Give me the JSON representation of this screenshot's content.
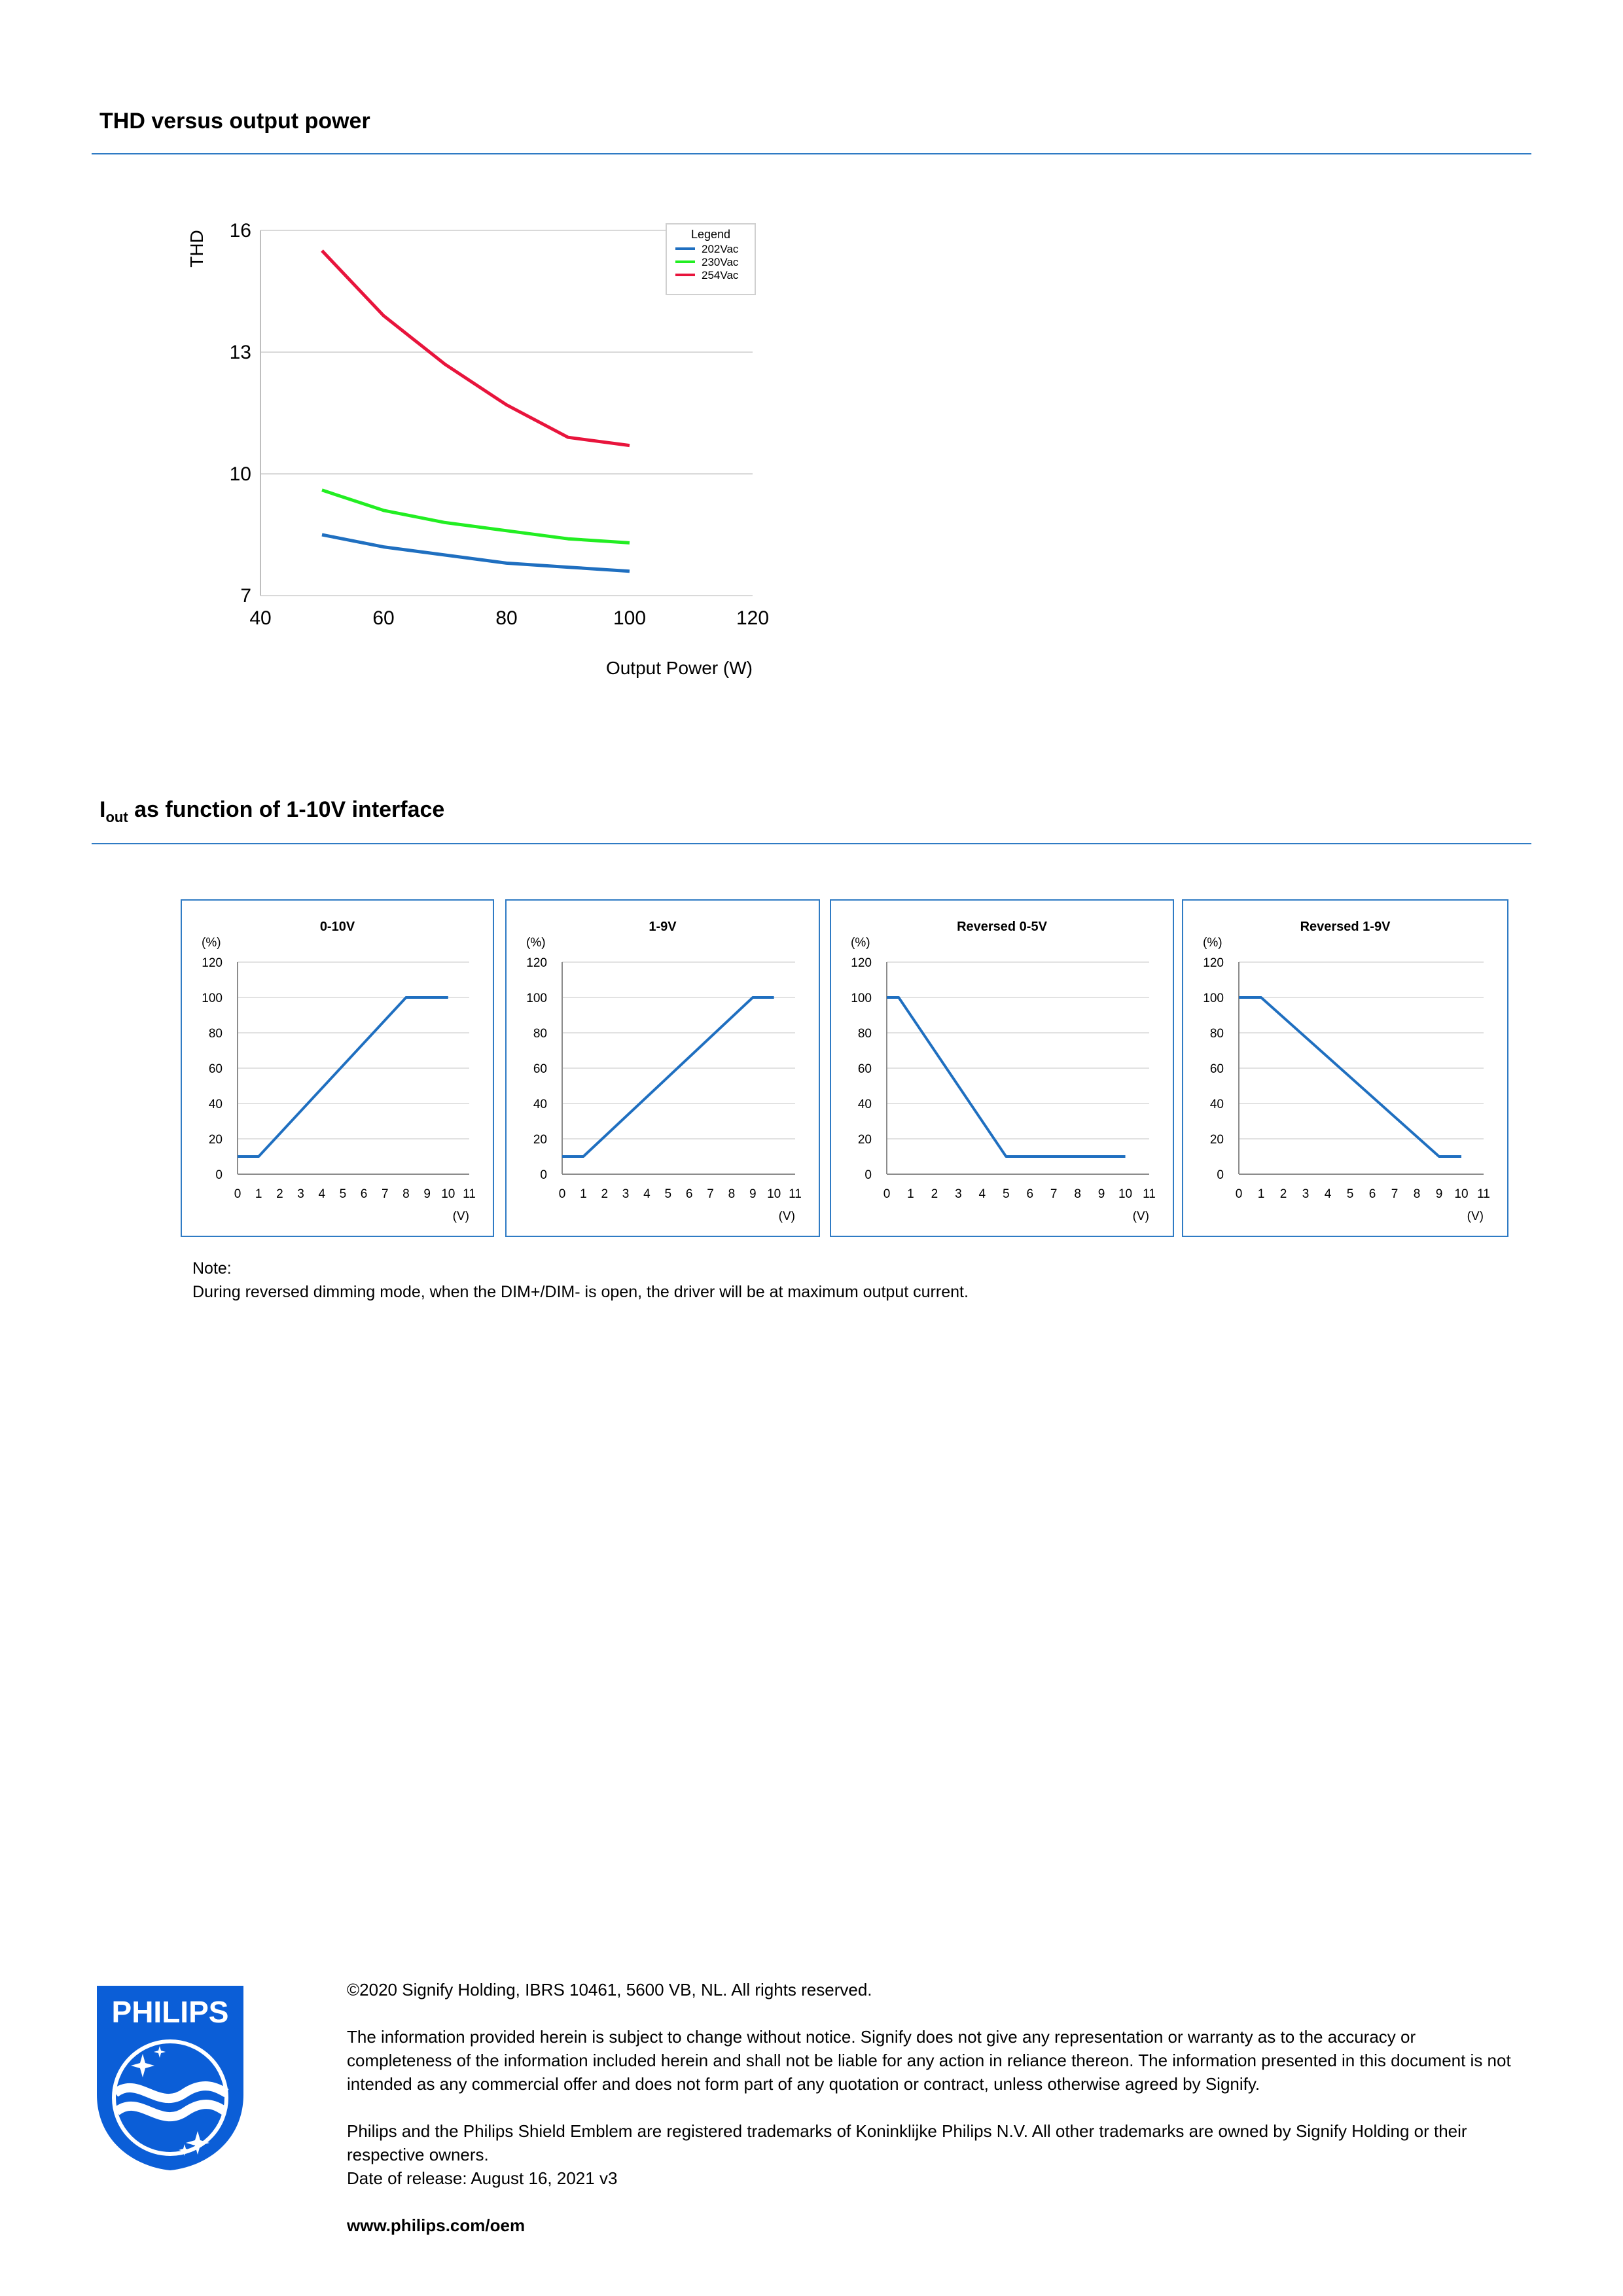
{
  "sections": {
    "thd_title": "THD versus output power",
    "iout_title_main": "I",
    "iout_title_sub": "out",
    "iout_title_rest": " as function of 1-10V interface"
  },
  "chart_data": [
    {
      "type": "line",
      "title": "",
      "xlabel": "Output Power (W)",
      "ylabel": "THD",
      "xlim": [
        40,
        120
      ],
      "ylim": [
        7,
        16
      ],
      "xticks": [
        40,
        60,
        80,
        100,
        120
      ],
      "yticks": [
        7,
        10,
        13,
        16
      ],
      "grid": "horizontal",
      "legend": {
        "title": "Legend",
        "position": "top-right"
      },
      "series": [
        {
          "name": "202Vac",
          "color": "#1f6fc0",
          "x": [
            50,
            60,
            70,
            80,
            90,
            100
          ],
          "y": [
            8.5,
            8.2,
            8.0,
            7.8,
            7.7,
            7.6
          ]
        },
        {
          "name": "230Vac",
          "color": "#22ee22",
          "x": [
            50,
            60,
            70,
            80,
            90,
            100
          ],
          "y": [
            9.6,
            9.1,
            8.8,
            8.6,
            8.4,
            8.3
          ]
        },
        {
          "name": "254Vac",
          "color": "#e8143c",
          "x": [
            50,
            60,
            70,
            80,
            90,
            100
          ],
          "y": [
            15.5,
            13.9,
            12.7,
            11.7,
            10.9,
            10.7
          ]
        }
      ]
    },
    {
      "type": "line",
      "title": "0-10V",
      "xunit": "(V)",
      "yunit": "(%)",
      "xlim": [
        0,
        11
      ],
      "ylim": [
        0,
        120
      ],
      "xticks": [
        0,
        1,
        2,
        3,
        4,
        5,
        6,
        7,
        8,
        9,
        10,
        11
      ],
      "yticks": [
        0,
        20,
        40,
        60,
        80,
        100,
        120
      ],
      "x": [
        0,
        1,
        8,
        10
      ],
      "y": [
        10,
        10,
        100,
        100
      ]
    },
    {
      "type": "line",
      "title": "1-9V",
      "xunit": "(V)",
      "yunit": "(%)",
      "xlim": [
        0,
        11
      ],
      "ylim": [
        0,
        120
      ],
      "xticks": [
        0,
        1,
        2,
        3,
        4,
        5,
        6,
        7,
        8,
        9,
        10,
        11
      ],
      "yticks": [
        0,
        20,
        40,
        60,
        80,
        100,
        120
      ],
      "x": [
        0,
        1,
        9,
        10
      ],
      "y": [
        10,
        10,
        100,
        100
      ]
    },
    {
      "type": "line",
      "title": "Reversed 0-5V",
      "xunit": "(V)",
      "yunit": "(%)",
      "xlim": [
        0,
        11
      ],
      "ylim": [
        0,
        120
      ],
      "xticks": [
        0,
        1,
        2,
        3,
        4,
        5,
        6,
        7,
        8,
        9,
        10,
        11
      ],
      "yticks": [
        0,
        20,
        40,
        60,
        80,
        100,
        120
      ],
      "x": [
        0,
        0.5,
        5,
        10
      ],
      "y": [
        100,
        100,
        10,
        10
      ]
    },
    {
      "type": "line",
      "title": "Reversed 1-9V",
      "xunit": "(V)",
      "yunit": "(%)",
      "xlim": [
        0,
        11
      ],
      "ylim": [
        0,
        120
      ],
      "xticks": [
        0,
        1,
        2,
        3,
        4,
        5,
        6,
        7,
        8,
        9,
        10,
        11
      ],
      "yticks": [
        0,
        20,
        40,
        60,
        80,
        100,
        120
      ],
      "x": [
        0,
        1,
        9,
        10
      ],
      "y": [
        100,
        100,
        10,
        10
      ]
    }
  ],
  "note": {
    "label": "Note:",
    "text": "During reversed dimming mode, when the DIM+/DIM- is open, the driver will be at maximum output current."
  },
  "footer": {
    "logo_text": "PHILIPS",
    "copyright": "©2020 Signify Holding, IBRS 10461, 5600 VB, NL. All rights reserved.",
    "disclaimer": "The information provided herein is subject to change without notice. Signify does not give any representation or warranty as to the accuracy or completeness of the information included herein and shall not be liable for any action in reliance thereon. The information presented in this document is not intended as any commercial offer and does not form part of any quotation or contract, unless otherwise agreed by Signify.",
    "trademarks": "Philips and the Philips Shield Emblem are registered trademarks of Koninklijke Philips N.V. All other trademarks are owned by Signify Holding or their respective owners.",
    "release": "Date of release: August 16, 2021 v3",
    "website": "www.philips.com/oem"
  },
  "colors": {
    "accent": "#2f7bc4",
    "philips_blue": "#0b5ed7"
  }
}
